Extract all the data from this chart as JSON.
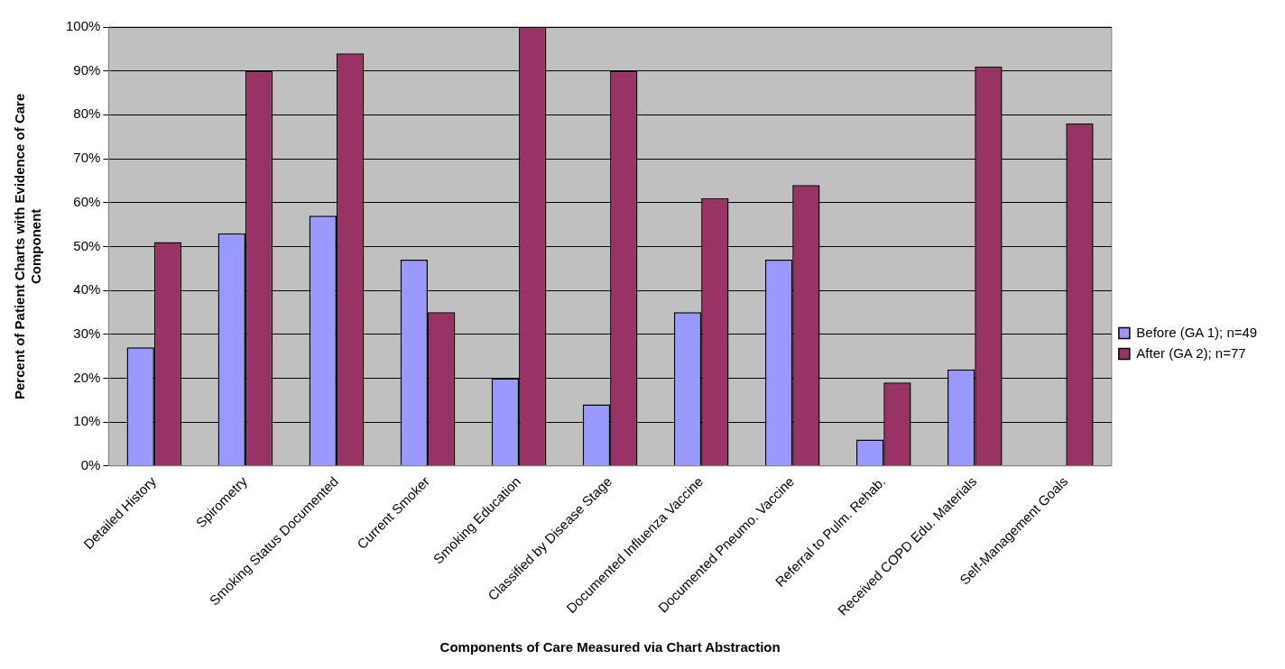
{
  "chart_data": {
    "type": "bar",
    "xlabel": "Components of Care Measured via Chart Abstraction",
    "ylabel": "Percent of Patient Charts with Evidence of Care Component",
    "categories": [
      "Detailed History",
      "Spirometry",
      "Smoking Status Documented",
      "Current Smoker",
      "Smoking Education",
      "Classified by Disease Stage",
      "Documented Influenza Vaccine",
      "Documented Pneumo. Vaccine",
      "Referral to Pulm. Rehab.",
      "Received COPD Edu. Materials",
      "Self-Management Goals"
    ],
    "series": [
      {
        "name": "Before (GA 1); n=49",
        "color": "#9999ff",
        "values": [
          27,
          53,
          57,
          47,
          20,
          14,
          35,
          47,
          6,
          22,
          null
        ]
      },
      {
        "name": "After (GA 2); n=77",
        "color": "#993366",
        "values": [
          51,
          90,
          94,
          35,
          100,
          90,
          61,
          64,
          19,
          91,
          78
        ]
      }
    ],
    "ylim": [
      0,
      100
    ],
    "yticks": [
      {
        "value": 0,
        "label": "0%"
      },
      {
        "value": 10,
        "label": "10%"
      },
      {
        "value": 20,
        "label": "20%"
      },
      {
        "value": 30,
        "label": "30%"
      },
      {
        "value": 40,
        "label": "40%"
      },
      {
        "value": 50,
        "label": "50%"
      },
      {
        "value": 60,
        "label": "60%"
      },
      {
        "value": 70,
        "label": "70%"
      },
      {
        "value": 80,
        "label": "80%"
      },
      {
        "value": 90,
        "label": "90%"
      },
      {
        "value": 100,
        "label": "100%"
      }
    ],
    "grid": "y",
    "legend": "right"
  }
}
